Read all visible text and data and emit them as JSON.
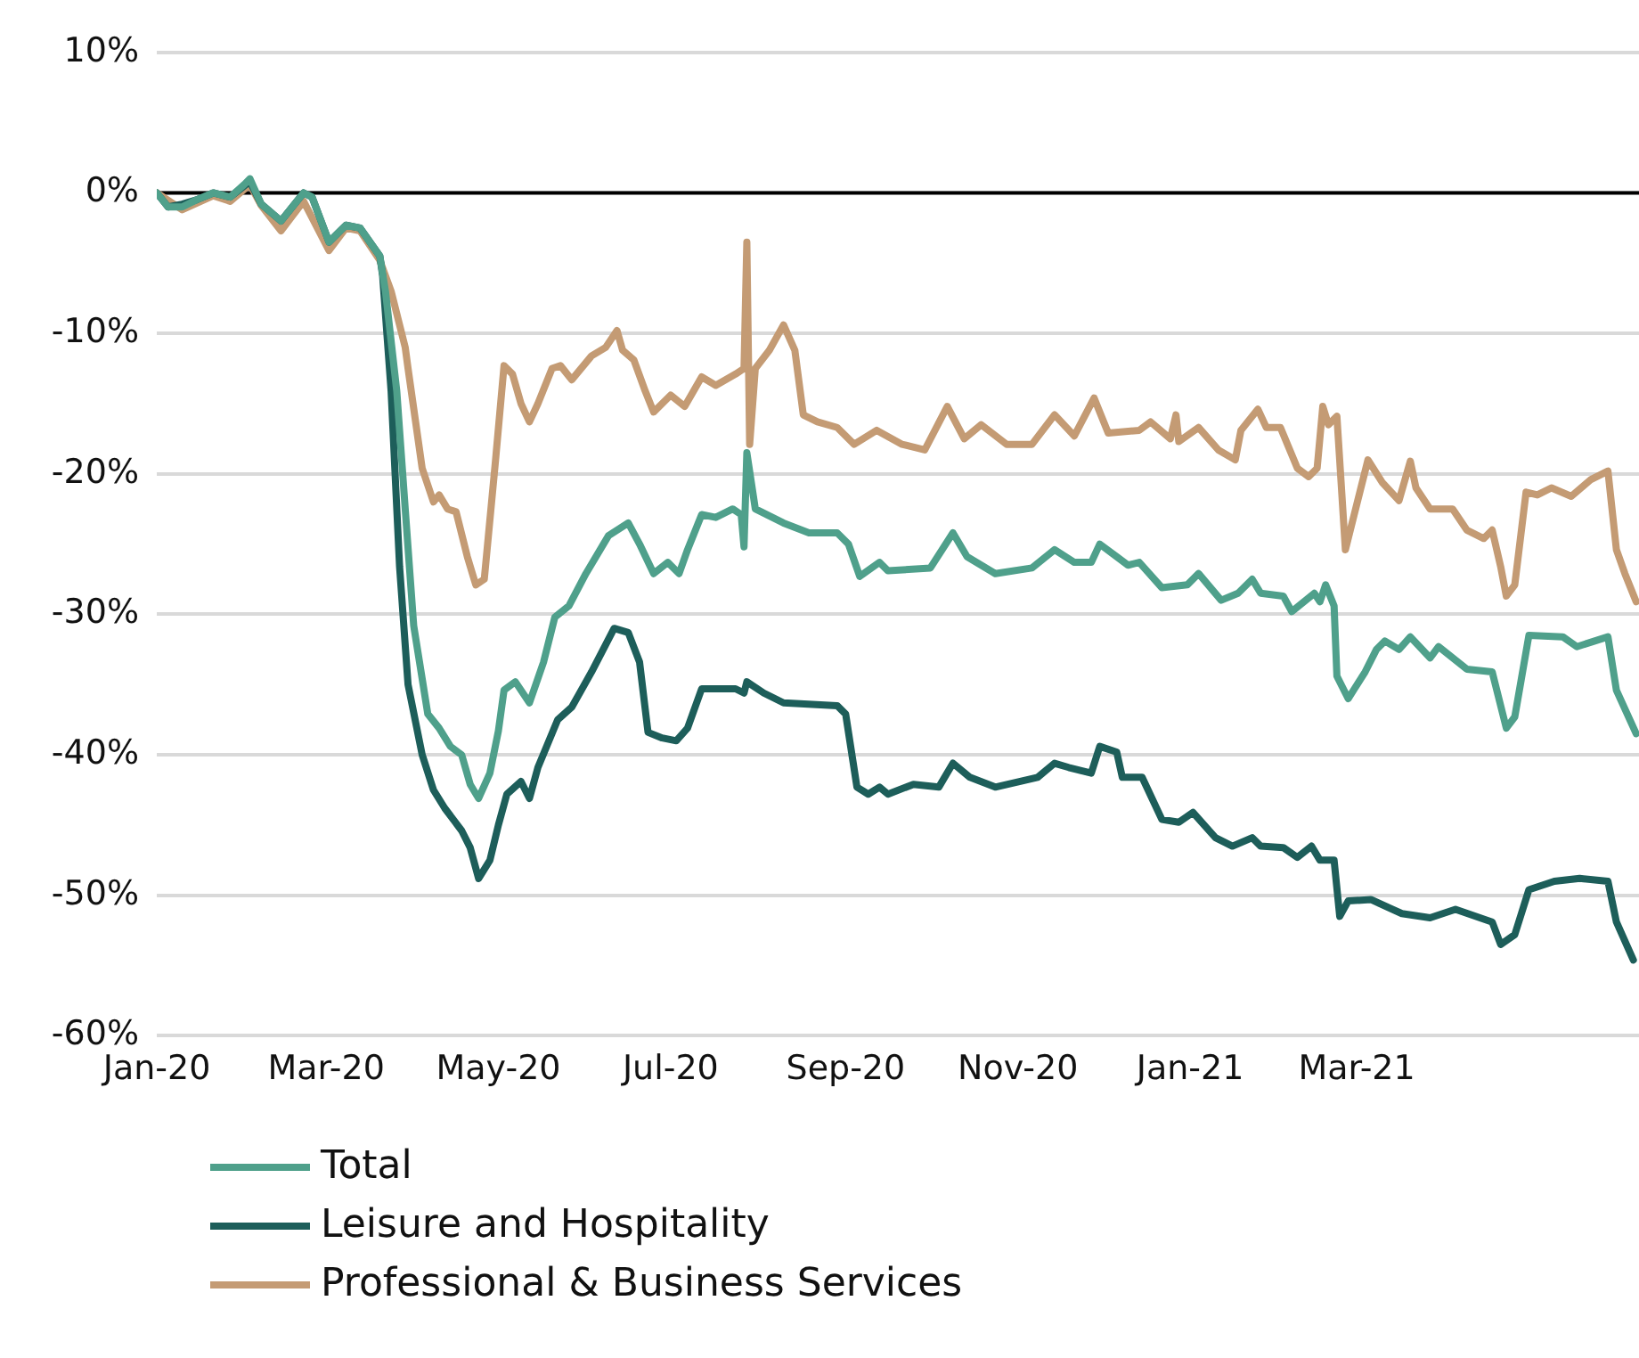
{
  "chart_data": {
    "type": "line",
    "xlim": [
      "2020-01-01",
      "2021-06-09"
    ],
    "xticks": [
      {
        "value": "2020-01-01",
        "label": "Jan-20"
      },
      {
        "value": "2020-03-01",
        "label": "Mar-20"
      },
      {
        "value": "2020-05-01",
        "label": "May-20"
      },
      {
        "value": "2020-07-01",
        "label": "Jul-20"
      },
      {
        "value": "2020-09-01",
        "label": "Sep-20"
      },
      {
        "value": "2020-11-01",
        "label": "Nov-20"
      },
      {
        "value": "2021-01-01",
        "label": "Jan-21"
      },
      {
        "value": "2021-03-01",
        "label": "Mar-21"
      }
    ],
    "ylim": [
      -60,
      10
    ],
    "yticks": [
      {
        "value": -60,
        "label": "-60%"
      },
      {
        "value": -50,
        "label": "-50%"
      },
      {
        "value": -40,
        "label": "-40%"
      },
      {
        "value": -30,
        "label": "-30%"
      },
      {
        "value": -20,
        "label": "-20%"
      },
      {
        "value": -10,
        "label": "-10%"
      },
      {
        "value": 0,
        "label": "0%"
      },
      {
        "value": 10,
        "label": "10%"
      }
    ],
    "grid": "y",
    "legend": "bottom left",
    "marker": "none",
    "line_style": "solid",
    "ref_lines": [
      {
        "axis": "y",
        "value": 0,
        "color": "#000000"
      }
    ],
    "series": [
      {
        "name": "Total",
        "color": "#4fa08b",
        "x": [
          "2020-01-01",
          "2020-01-05",
          "2020-01-10",
          "2020-01-15",
          "2020-01-21",
          "2020-01-27",
          "2020-02-01",
          "2020-02-03",
          "2020-02-07",
          "2020-02-14",
          "2020-02-22",
          "2020-02-25",
          "2020-03-02",
          "2020-03-08",
          "2020-03-13",
          "2020-03-20",
          "2020-03-22",
          "2020-03-26",
          "2020-03-29",
          "2020-04-01",
          "2020-04-06",
          "2020-04-10",
          "2020-04-14",
          "2020-04-18",
          "2020-04-21",
          "2020-04-24",
          "2020-04-28",
          "2020-05-01",
          "2020-05-03",
          "2020-05-07",
          "2020-05-12",
          "2020-05-17",
          "2020-05-21",
          "2020-05-26",
          "2020-06-01",
          "2020-06-09",
          "2020-06-16",
          "2020-06-20",
          "2020-06-25",
          "2020-06-30",
          "2020-07-04",
          "2020-07-07",
          "2020-07-12",
          "2020-07-17",
          "2020-07-23",
          "2020-07-26",
          "2020-07-27",
          "2020-07-28",
          "2020-07-31",
          "2020-08-10",
          "2020-08-19",
          "2020-08-29",
          "2020-09-02",
          "2020-09-06",
          "2020-09-13",
          "2020-09-16",
          "2020-10-01",
          "2020-10-09",
          "2020-10-14",
          "2020-10-24",
          "2020-11-06",
          "2020-11-14",
          "2020-11-21",
          "2020-11-27",
          "2020-11-30",
          "2020-12-06",
          "2020-12-10",
          "2020-12-14",
          "2020-12-22",
          "2020-12-31",
          "2021-01-04",
          "2021-01-12",
          "2021-01-18",
          "2021-01-23",
          "2021-01-26",
          "2021-02-03",
          "2021-02-06",
          "2021-02-14",
          "2021-02-16",
          "2021-02-18",
          "2021-02-21",
          "2021-02-22",
          "2021-02-26",
          "2021-03-04",
          "2021-03-08",
          "2021-03-11",
          "2021-03-16",
          "2021-03-20",
          "2021-03-27",
          "2021-03-30",
          "2021-04-09",
          "2021-04-18",
          "2021-04-23",
          "2021-04-26",
          "2021-05-01",
          "2021-05-13",
          "2021-05-18",
          "2021-05-29",
          "2021-06-01",
          "2021-06-08"
        ],
        "values": [
          0,
          -1,
          -1,
          -0.5,
          0,
          -0.3,
          0.6,
          1,
          -0.8,
          -2,
          0,
          -0.3,
          -3.5,
          -2.3,
          -2.5,
          -4.5,
          -7,
          -14.1,
          -22.5,
          -30.8,
          -37.1,
          -38.1,
          -39.4,
          -40,
          -42.1,
          -43.1,
          -41.3,
          -38.3,
          -35.4,
          -34.8,
          -36.3,
          -33.4,
          -30.2,
          -29.4,
          -27.1,
          -24.4,
          -23.5,
          -25,
          -27.1,
          -26.3,
          -27.1,
          -25.4,
          -22.9,
          -23.1,
          -22.5,
          -22.9,
          -25.2,
          -18.5,
          -22.5,
          -23.5,
          -24.2,
          -24.2,
          -25,
          -27.3,
          -26.3,
          -26.9,
          -26.7,
          -24.2,
          -25.9,
          -27.1,
          -26.7,
          -25.4,
          -26.3,
          -26.3,
          -25,
          -25.9,
          -26.5,
          -26.3,
          -28.1,
          -27.9,
          -27.1,
          -29,
          -28.5,
          -27.5,
          -28.5,
          -28.7,
          -29.8,
          -28.5,
          -29.1,
          -27.9,
          -29.4,
          -34.4,
          -36,
          -34.1,
          -32.5,
          -31.9,
          -32.5,
          -31.6,
          -33.1,
          -32.3,
          -33.9,
          -34.1,
          -38.1,
          -37.3,
          -31.5,
          -31.6,
          -32.3,
          -31.6,
          -35.4,
          -38.5
        ]
      },
      {
        "name": "Leisure and Hospitality",
        "color": "#1d5e5a",
        "x": [
          "2020-01-01",
          "2020-01-05",
          "2020-01-10",
          "2020-01-15",
          "2020-01-21",
          "2020-01-27",
          "2020-02-01",
          "2020-02-03",
          "2020-02-07",
          "2020-02-14",
          "2020-02-22",
          "2020-02-25",
          "2020-03-02",
          "2020-03-08",
          "2020-03-13",
          "2020-03-20",
          "2020-03-21",
          "2020-03-24",
          "2020-03-27",
          "2020-03-30",
          "2020-04-04",
          "2020-04-08",
          "2020-04-12",
          "2020-04-18",
          "2020-04-21",
          "2020-04-24",
          "2020-04-28",
          "2020-05-01",
          "2020-05-04",
          "2020-05-09",
          "2020-05-12",
          "2020-05-15",
          "2020-05-22",
          "2020-05-27",
          "2020-06-03",
          "2020-06-11",
          "2020-06-16",
          "2020-06-20",
          "2020-06-23",
          "2020-06-28",
          "2020-07-03",
          "2020-07-07",
          "2020-07-12",
          "2020-07-24",
          "2020-07-27",
          "2020-07-28",
          "2020-08-03",
          "2020-08-10",
          "2020-08-29",
          "2020-09-01",
          "2020-09-05",
          "2020-09-09",
          "2020-09-13",
          "2020-09-16",
          "2020-09-25",
          "2020-10-04",
          "2020-10-09",
          "2020-10-15",
          "2020-10-24",
          "2020-11-08",
          "2020-11-14",
          "2020-11-19",
          "2020-11-27",
          "2020-11-30",
          "2020-12-06",
          "2020-12-08",
          "2020-12-15",
          "2020-12-22",
          "2020-12-28",
          "2021-01-02",
          "2021-01-10",
          "2021-01-16",
          "2021-01-23",
          "2021-01-26",
          "2021-02-03",
          "2021-02-08",
          "2021-02-13",
          "2021-02-16",
          "2021-02-21",
          "2021-02-23",
          "2021-02-26",
          "2021-03-06",
          "2021-03-17",
          "2021-03-27",
          "2021-04-05",
          "2021-04-18",
          "2021-04-21",
          "2021-04-26",
          "2021-05-01",
          "2021-05-10",
          "2021-05-19",
          "2021-05-29",
          "2021-06-01",
          "2021-06-07"
        ],
        "values": [
          0,
          -1,
          -0.8,
          -0.5,
          0,
          -0.3,
          0.5,
          0.8,
          -0.8,
          -2,
          0,
          -0.3,
          -3.5,
          -2.3,
          -2.5,
          -4.5,
          -5.9,
          -14.1,
          -26.6,
          -35,
          -40,
          -42.5,
          -43.8,
          -45.4,
          -46.6,
          -48.8,
          -47.5,
          -45,
          -42.8,
          -41.9,
          -43.1,
          -40.9,
          -37.5,
          -36.6,
          -34.1,
          -31,
          -31.3,
          -33.4,
          -38.4,
          -38.8,
          -39,
          -38.1,
          -35.3,
          -35.3,
          -35.6,
          -34.8,
          -35.6,
          -36.3,
          -36.5,
          -37.1,
          -42.3,
          -42.8,
          -42.3,
          -42.8,
          -42.1,
          -42.3,
          -40.6,
          -41.6,
          -42.3,
          -41.6,
          -40.6,
          -40.9,
          -41.3,
          -39.4,
          -39.8,
          -41.6,
          -41.6,
          -44.6,
          -44.8,
          -44.1,
          -45.9,
          -46.5,
          -45.9,
          -46.5,
          -46.6,
          -47.3,
          -46.5,
          -47.5,
          -47.5,
          -51.5,
          -50.4,
          -50.3,
          -51.3,
          -51.6,
          -51,
          -51.9,
          -53.5,
          -52.8,
          -49.6,
          -49,
          -48.8,
          -49,
          -51.9,
          -54.6
        ]
      },
      {
        "name": "Professional & Business Services",
        "color": "#c49b74",
        "x": [
          "2020-01-01",
          "2020-01-10",
          "2020-01-21",
          "2020-01-27",
          "2020-02-03",
          "2020-02-07",
          "2020-02-14",
          "2020-02-22",
          "2020-03-02",
          "2020-03-08",
          "2020-03-13",
          "2020-03-20",
          "2020-03-24",
          "2020-03-29",
          "2020-03-30",
          "2020-04-04",
          "2020-04-08",
          "2020-04-10",
          "2020-04-13",
          "2020-04-16",
          "2020-04-20",
          "2020-04-23",
          "2020-04-26",
          "2020-04-30",
          "2020-05-03",
          "2020-05-06",
          "2020-05-09",
          "2020-05-12",
          "2020-05-15",
          "2020-05-20",
          "2020-05-23",
          "2020-05-27",
          "2020-06-03",
          "2020-06-08",
          "2020-06-12",
          "2020-06-14",
          "2020-06-18",
          "2020-06-22",
          "2020-06-25",
          "2020-07-01",
          "2020-07-06",
          "2020-07-12",
          "2020-07-17",
          "2020-07-24",
          "2020-07-27",
          "2020-07-28",
          "2020-07-29",
          "2020-07-31",
          "2020-08-05",
          "2020-08-10",
          "2020-08-14",
          "2020-08-17",
          "2020-08-22",
          "2020-08-29",
          "2020-09-04",
          "2020-09-12",
          "2020-09-21",
          "2020-09-29",
          "2020-10-07",
          "2020-10-13",
          "2020-10-19",
          "2020-10-28",
          "2020-11-06",
          "2020-11-14",
          "2020-11-21",
          "2020-11-28",
          "2020-12-03",
          "2020-12-14",
          "2020-12-18",
          "2020-12-25",
          "2020-12-27",
          "2020-12-28",
          "2021-01-04",
          "2021-01-11",
          "2021-01-17",
          "2021-01-19",
          "2021-01-25",
          "2021-01-28",
          "2021-02-02",
          "2021-02-08",
          "2021-02-12",
          "2021-02-15",
          "2021-02-17",
          "2021-02-19",
          "2021-02-22",
          "2021-02-25",
          "2021-03-05",
          "2021-03-10",
          "2021-03-16",
          "2021-03-20",
          "2021-03-22",
          "2021-03-27",
          "2021-04-04",
          "2021-04-09",
          "2021-04-15",
          "2021-04-18",
          "2021-04-21",
          "2021-04-23",
          "2021-04-26",
          "2021-04-30",
          "2021-05-04",
          "2021-05-09",
          "2021-05-16",
          "2021-05-23",
          "2021-05-29",
          "2021-06-01",
          "2021-06-04",
          "2021-06-08"
        ],
        "values": [
          0,
          -1.2,
          -0.2,
          -0.6,
          0.6,
          -0.9,
          -2.7,
          -0.6,
          -4.1,
          -2.5,
          -2.7,
          -4.8,
          -7,
          -11,
          -12.5,
          -19.6,
          -22,
          -21.5,
          -22.5,
          -22.7,
          -25.9,
          -27.9,
          -27.5,
          -19,
          -12.3,
          -12.9,
          -15,
          -16.3,
          -15,
          -12.5,
          -12.3,
          -13.3,
          -11.6,
          -11,
          -9.8,
          -11.2,
          -11.9,
          -14.1,
          -15.6,
          -14.4,
          -15.2,
          -13.1,
          -13.7,
          -12.9,
          -12.5,
          -3.5,
          -17.9,
          -12.5,
          -11.2,
          -9.4,
          -11.2,
          -15.8,
          -16.3,
          -16.7,
          -17.9,
          -16.9,
          -17.9,
          -18.3,
          -15.2,
          -17.5,
          -16.5,
          -17.9,
          -17.9,
          -15.8,
          -17.3,
          -14.6,
          -17.1,
          -16.9,
          -16.3,
          -17.5,
          -15.8,
          -17.7,
          -16.7,
          -18.3,
          -19,
          -16.9,
          -15.4,
          -16.7,
          -16.7,
          -19.6,
          -20.2,
          -19.6,
          -15.2,
          -16.5,
          -15.9,
          -25.4,
          -19,
          -20.6,
          -21.9,
          -19.1,
          -21,
          -22.5,
          -22.5,
          -24,
          -24.6,
          -24,
          -26.6,
          -28.7,
          -27.9,
          -21.3,
          -21.5,
          -21,
          -21.6,
          -20.4,
          -19.8,
          -25.4,
          -27.1,
          -29.1
        ]
      }
    ]
  }
}
